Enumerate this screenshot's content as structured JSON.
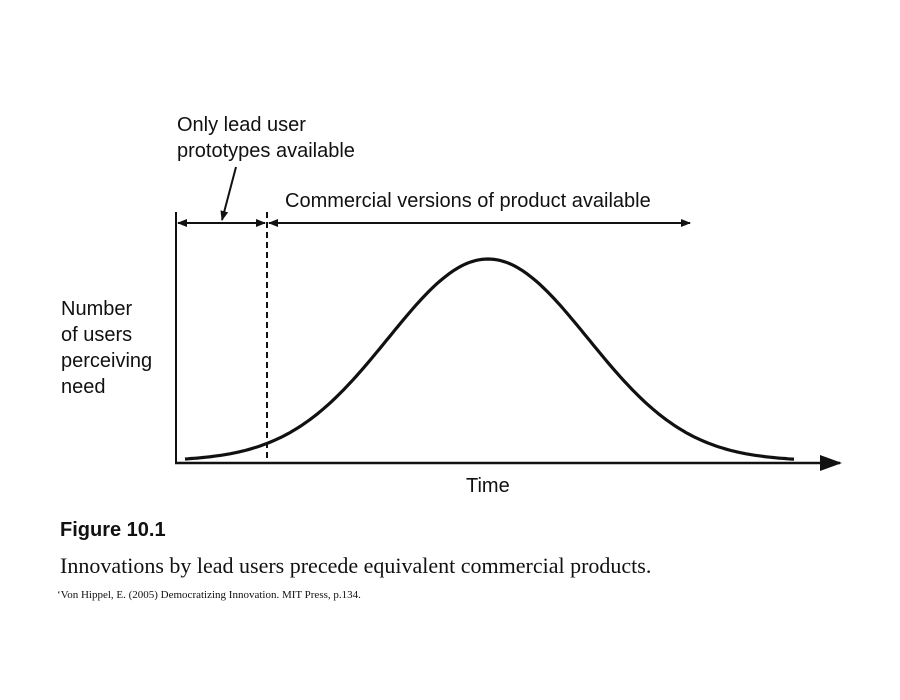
{
  "figure": {
    "number": "Figure 10.1",
    "caption": "Innovations by lead users precede equivalent commercial products.",
    "source": "‘Von Hippel, E. (2005) Democratizing Innovation. MIT Press, p.134."
  },
  "annotations": {
    "lead_user": [
      "Only lead user",
      "prototypes available"
    ],
    "commercial": "Commercial versions of product available"
  },
  "axes": {
    "y_label": [
      "Number",
      "of users",
      "perceiving",
      "need"
    ],
    "x_label": "Time"
  },
  "chart_data": {
    "type": "line",
    "curve": "bell-shaped (diffusion of need over time)",
    "y_axis_label": "Number of users perceiving need",
    "x_axis_label": "Time",
    "grid": false,
    "markers": [
      "dashed vertical line separating lead-user period from commercial period"
    ]
  }
}
